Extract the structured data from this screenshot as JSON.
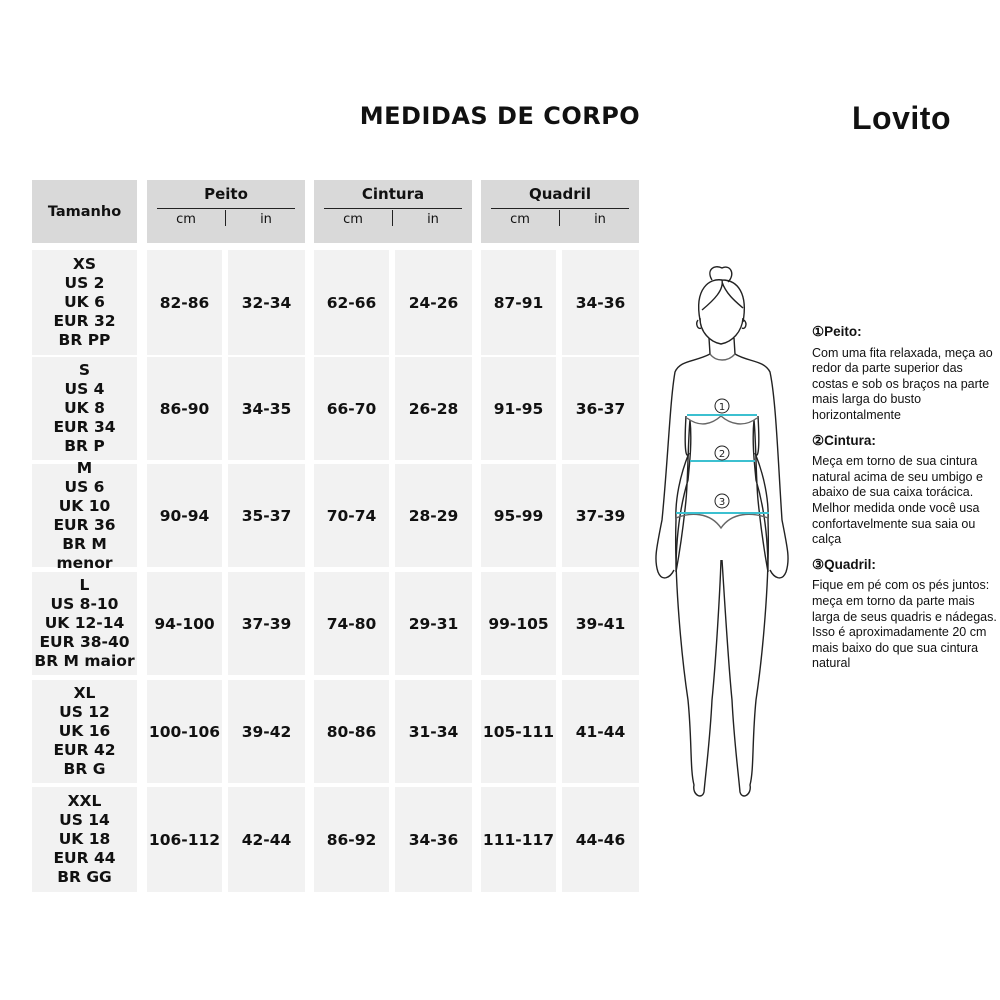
{
  "title": "MEDIDAS DE CORPO",
  "brand": "Lovito",
  "colors": {
    "header_bg": "#d9d9d9",
    "cell_bg": "#f2f2f2",
    "measure_line": "#3cc0d0"
  },
  "table": {
    "size_header": "Tamanho",
    "groups": [
      {
        "label": "Peito",
        "units": [
          "cm",
          "in"
        ]
      },
      {
        "label": "Cintura",
        "units": [
          "cm",
          "in"
        ]
      },
      {
        "label": "Quadril",
        "units": [
          "cm",
          "in"
        ]
      }
    ],
    "rows": [
      {
        "size": "XS\nUS 2\nUK 6\nEUR 32\nBR PP",
        "values": [
          "82-86",
          "32-34",
          "62-66",
          "24-26",
          "87-91",
          "34-36"
        ]
      },
      {
        "size": "S\nUS 4\nUK 8\nEUR 34\nBR P",
        "values": [
          "86-90",
          "34-35",
          "66-70",
          "26-28",
          "91-95",
          "36-37"
        ]
      },
      {
        "size": "M\nUS 6\nUK 10\nEUR 36\nBR M menor",
        "values": [
          "90-94",
          "35-37",
          "70-74",
          "28-29",
          "95-99",
          "37-39"
        ]
      },
      {
        "size": "L\nUS 8-10\nUK 12-14\nEUR 38-40\nBR M maior",
        "values": [
          "94-100",
          "37-39",
          "74-80",
          "29-31",
          "99-105",
          "39-41"
        ]
      },
      {
        "size": "XL\nUS 12\nUK 16\nEUR 42\nBR G",
        "values": [
          "100-106",
          "39-42",
          "80-86",
          "31-34",
          "105-111",
          "41-44"
        ]
      },
      {
        "size": "XXL\nUS 14\nUK 18\nEUR 44\nBR GG",
        "values": [
          "106-112",
          "42-44",
          "86-92",
          "34-36",
          "111-117",
          "44-46"
        ]
      }
    ]
  },
  "figure": {
    "markers": [
      "1",
      "2",
      "3"
    ]
  },
  "notes": [
    {
      "heading": "①Peito:",
      "text": "Com uma fita relaxada, meça ao redor da parte superior das costas e sob os braços na parte mais larga do busto horizontalmente"
    },
    {
      "heading": "②Cintura:",
      "text": "Meça em torno de sua cintura natural acima de seu umbigo e abaixo de sua caixa torácica. Melhor medida onde você usa confortavelmente sua saia ou calça"
    },
    {
      "heading": "③Quadril:",
      "text": "Fique em pé com os pés juntos: meça em torno da parte mais larga de seus quadris e nádegas. Isso é aproximadamente 20 cm mais baixo do que sua cintura natural"
    }
  ]
}
